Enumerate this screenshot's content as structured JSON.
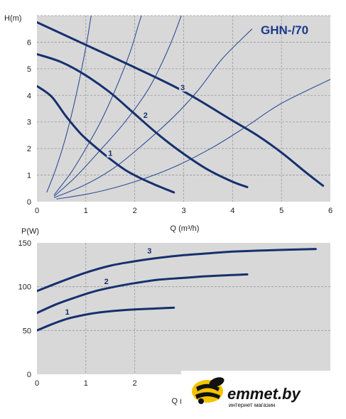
{
  "colors": {
    "plot_bg": "#d8d8d8",
    "curve": "#15306e",
    "system": "#2f4f96",
    "grid": "#9a9a9a",
    "title": "#1a3a8a"
  },
  "chart_data": [
    {
      "type": "line",
      "title": "GHN-/70",
      "ylabel": "H(m)",
      "xlabel": "Q (m³/h)",
      "xlim": [
        0,
        6
      ],
      "ylim": [
        0,
        7
      ],
      "xticks": [
        "0",
        "1",
        "2",
        "3",
        "4",
        "5",
        "6"
      ],
      "yticks": [
        "0",
        "1",
        "2",
        "3",
        "4",
        "5",
        "6"
      ],
      "grid": true,
      "series": [
        {
          "name": "1",
          "points": [
            [
              0,
              4.35
            ],
            [
              0.3,
              3.95
            ],
            [
              0.6,
              3.2
            ],
            [
              0.9,
              2.55
            ],
            [
              1.2,
              2.05
            ],
            [
              1.5,
              1.6
            ],
            [
              1.8,
              1.2
            ],
            [
              2.1,
              0.9
            ],
            [
              2.4,
              0.65
            ],
            [
              2.8,
              0.35
            ]
          ]
        },
        {
          "name": "2",
          "points": [
            [
              0,
              5.55
            ],
            [
              0.5,
              5.25
            ],
            [
              1.0,
              4.75
            ],
            [
              1.5,
              4.1
            ],
            [
              2.0,
              3.3
            ],
            [
              2.5,
              2.5
            ],
            [
              3.0,
              1.8
            ],
            [
              3.5,
              1.2
            ],
            [
              4.0,
              0.75
            ],
            [
              4.3,
              0.55
            ]
          ]
        },
        {
          "name": "3",
          "points": [
            [
              0,
              6.75
            ],
            [
              1.0,
              5.9
            ],
            [
              2.0,
              5.05
            ],
            [
              3.0,
              4.15
            ],
            [
              4.0,
              3.05
            ],
            [
              4.5,
              2.5
            ],
            [
              5.0,
              1.85
            ],
            [
              5.5,
              1.1
            ],
            [
              5.85,
              0.6
            ]
          ]
        }
      ],
      "system_curves": [
        {
          "points": [
            [
              0.2,
              0.35
            ],
            [
              0.4,
              1.3
            ],
            [
              0.6,
              2.5
            ],
            [
              0.8,
              4.0
            ],
            [
              1.0,
              5.8
            ],
            [
              1.1,
              6.9
            ],
            [
              1.15,
              7.3
            ]
          ]
        },
        {
          "points": [
            [
              0.35,
              0.25
            ],
            [
              0.7,
              1.1
            ],
            [
              1.0,
              2.0
            ],
            [
              1.3,
              3.0
            ],
            [
              1.6,
              4.2
            ],
            [
              1.9,
              5.6
            ],
            [
              2.1,
              6.8
            ],
            [
              2.2,
              7.3
            ]
          ]
        },
        {
          "points": [
            [
              0.35,
              0.2
            ],
            [
              0.8,
              0.95
            ],
            [
              1.3,
              1.95
            ],
            [
              1.8,
              3.0
            ],
            [
              2.3,
              4.3
            ],
            [
              2.7,
              5.8
            ],
            [
              2.95,
              7.0
            ],
            [
              3.0,
              7.3
            ]
          ]
        },
        {
          "points": [
            [
              0.35,
              0.15
            ],
            [
              1.0,
              0.65
            ],
            [
              1.6,
              1.3
            ],
            [
              2.2,
              2.2
            ],
            [
              2.8,
              3.2
            ],
            [
              3.3,
              4.2
            ],
            [
              3.8,
              5.4
            ],
            [
              4.4,
              6.5
            ]
          ]
        },
        {
          "points": [
            [
              0.4,
              0.1
            ],
            [
              1.2,
              0.35
            ],
            [
              2.0,
              0.75
            ],
            [
              2.8,
              1.3
            ],
            [
              3.6,
              2.05
            ],
            [
              4.3,
              2.85
            ],
            [
              5.0,
              3.7
            ],
            [
              6.0,
              4.6
            ]
          ]
        }
      ]
    },
    {
      "type": "line",
      "title": "",
      "ylabel": "P(W)",
      "xlabel": "Q (m³/h)",
      "xlim": [
        0,
        6
      ],
      "ylim": [
        0,
        150
      ],
      "xticks": [
        "0",
        "1",
        "2"
      ],
      "yticks": [
        "0",
        "50",
        "100",
        "150"
      ],
      "grid": true,
      "series": [
        {
          "name": "1",
          "points": [
            [
              0,
              50
            ],
            [
              0.3,
              57
            ],
            [
              0.6,
              63
            ],
            [
              0.9,
              67
            ],
            [
              1.2,
              70
            ],
            [
              1.6,
              72.5
            ],
            [
              2.0,
              74
            ],
            [
              2.4,
              75
            ],
            [
              2.8,
              76
            ]
          ]
        },
        {
          "name": "2",
          "points": [
            [
              0,
              70
            ],
            [
              0.4,
              80
            ],
            [
              0.8,
              88
            ],
            [
              1.2,
              95
            ],
            [
              1.6,
              100
            ],
            [
              2.0,
              104
            ],
            [
              2.5,
              108
            ],
            [
              3.0,
              110
            ],
            [
              3.5,
              112
            ],
            [
              4.3,
              114
            ]
          ]
        },
        {
          "name": "3",
          "points": [
            [
              0,
              95
            ],
            [
              0.5,
              106
            ],
            [
              1.0,
              116
            ],
            [
              1.5,
              124
            ],
            [
              2.0,
              129
            ],
            [
              2.5,
              133
            ],
            [
              3.0,
              136
            ],
            [
              3.5,
              138
            ],
            [
              4.0,
              140
            ],
            [
              5.0,
              142
            ],
            [
              5.7,
              143
            ]
          ]
        }
      ]
    }
  ],
  "watermark": {
    "brand": "emmet.by",
    "tagline": "интернет магазин"
  }
}
